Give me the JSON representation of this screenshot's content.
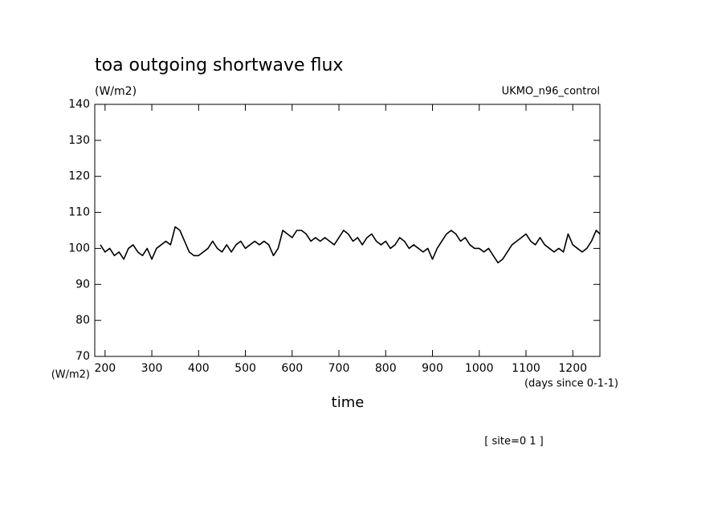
{
  "chart_data": {
    "type": "line",
    "title": "toa outgoing shortwave flux",
    "y_unit_top": "(W/m2)",
    "y_unit_bottom": "(W/m2)",
    "subtitle": "UKMO_n96_control",
    "x_unit": "(days since 0-1-1)",
    "xlabel": "time",
    "annotation": "[ site=0 1 ]",
    "color": "#000000",
    "xlim": [
      178,
      1258
    ],
    "ylim": [
      70,
      140
    ],
    "xticks": [
      200,
      300,
      400,
      500,
      600,
      700,
      800,
      900,
      1000,
      1100,
      1200
    ],
    "yticks": [
      70,
      80,
      90,
      100,
      110,
      120,
      130,
      140
    ],
    "x": [
      190,
      200,
      210,
      220,
      230,
      240,
      250,
      260,
      270,
      280,
      290,
      300,
      310,
      320,
      330,
      340,
      350,
      360,
      370,
      380,
      390,
      400,
      410,
      420,
      430,
      440,
      450,
      460,
      470,
      480,
      490,
      500,
      510,
      520,
      530,
      540,
      550,
      560,
      570,
      580,
      590,
      600,
      610,
      620,
      630,
      640,
      650,
      660,
      670,
      680,
      690,
      700,
      710,
      720,
      730,
      740,
      750,
      760,
      770,
      780,
      790,
      800,
      810,
      820,
      830,
      840,
      850,
      860,
      870,
      880,
      890,
      900,
      910,
      920,
      930,
      940,
      950,
      960,
      970,
      980,
      990,
      1000,
      1010,
      1020,
      1030,
      1040,
      1050,
      1060,
      1070,
      1080,
      1090,
      1100,
      1110,
      1120,
      1130,
      1140,
      1150,
      1160,
      1170,
      1180,
      1190,
      1200,
      1210,
      1220,
      1230,
      1240,
      1250,
      1258
    ],
    "values": [
      101,
      99,
      100,
      98,
      99,
      97,
      100,
      101,
      99,
      98,
      100,
      97,
      100,
      101,
      102,
      101,
      106,
      105,
      102,
      99,
      98,
      98,
      99,
      100,
      102,
      100,
      99,
      101,
      99,
      101,
      102,
      100,
      101,
      102,
      101,
      102,
      101,
      98,
      100,
      105,
      104,
      103,
      105,
      105,
      104,
      102,
      103,
      102,
      103,
      102,
      101,
      103,
      105,
      104,
      102,
      103,
      101,
      103,
      104,
      102,
      101,
      102,
      100,
      101,
      103,
      102,
      100,
      101,
      100,
      99,
      100,
      97,
      100,
      102,
      104,
      105,
      104,
      102,
      103,
      101,
      100,
      100,
      99,
      100,
      98,
      96,
      97,
      99,
      101,
      102,
      103,
      104,
      102,
      101,
      103,
      101,
      100,
      99,
      100,
      99,
      104,
      101,
      100,
      99,
      100,
      102,
      105,
      104
    ]
  }
}
